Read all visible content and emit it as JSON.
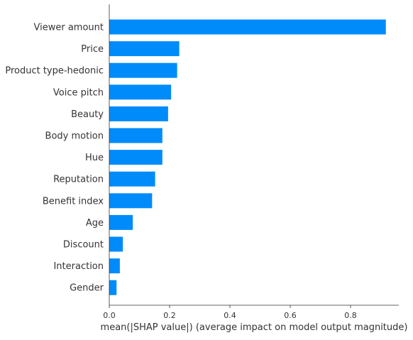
{
  "chart_data": {
    "type": "bar",
    "orientation": "horizontal",
    "title": "",
    "xlabel": "mean(|SHAP value|) (average impact on model output magnitude)",
    "ylabel": "",
    "xlim": [
      0,
      0.96
    ],
    "xticks": [
      0.0,
      0.2,
      0.4,
      0.6,
      0.8
    ],
    "xtick_labels": [
      "0.0",
      "0.2",
      "0.4",
      "0.6",
      "0.8"
    ],
    "grid": false,
    "legend": "none",
    "bar_color": "#008bfb",
    "categories": [
      "Viewer amount",
      "Price",
      "Product type-hedonic",
      "Voice pitch",
      "Beauty",
      "Body motion",
      "Hue",
      "Reputation",
      "Benefit index",
      "Age",
      "Discount",
      "Interaction",
      "Gender"
    ],
    "values": [
      0.917,
      0.232,
      0.225,
      0.205,
      0.195,
      0.176,
      0.176,
      0.152,
      0.142,
      0.078,
      0.045,
      0.035,
      0.024
    ]
  }
}
